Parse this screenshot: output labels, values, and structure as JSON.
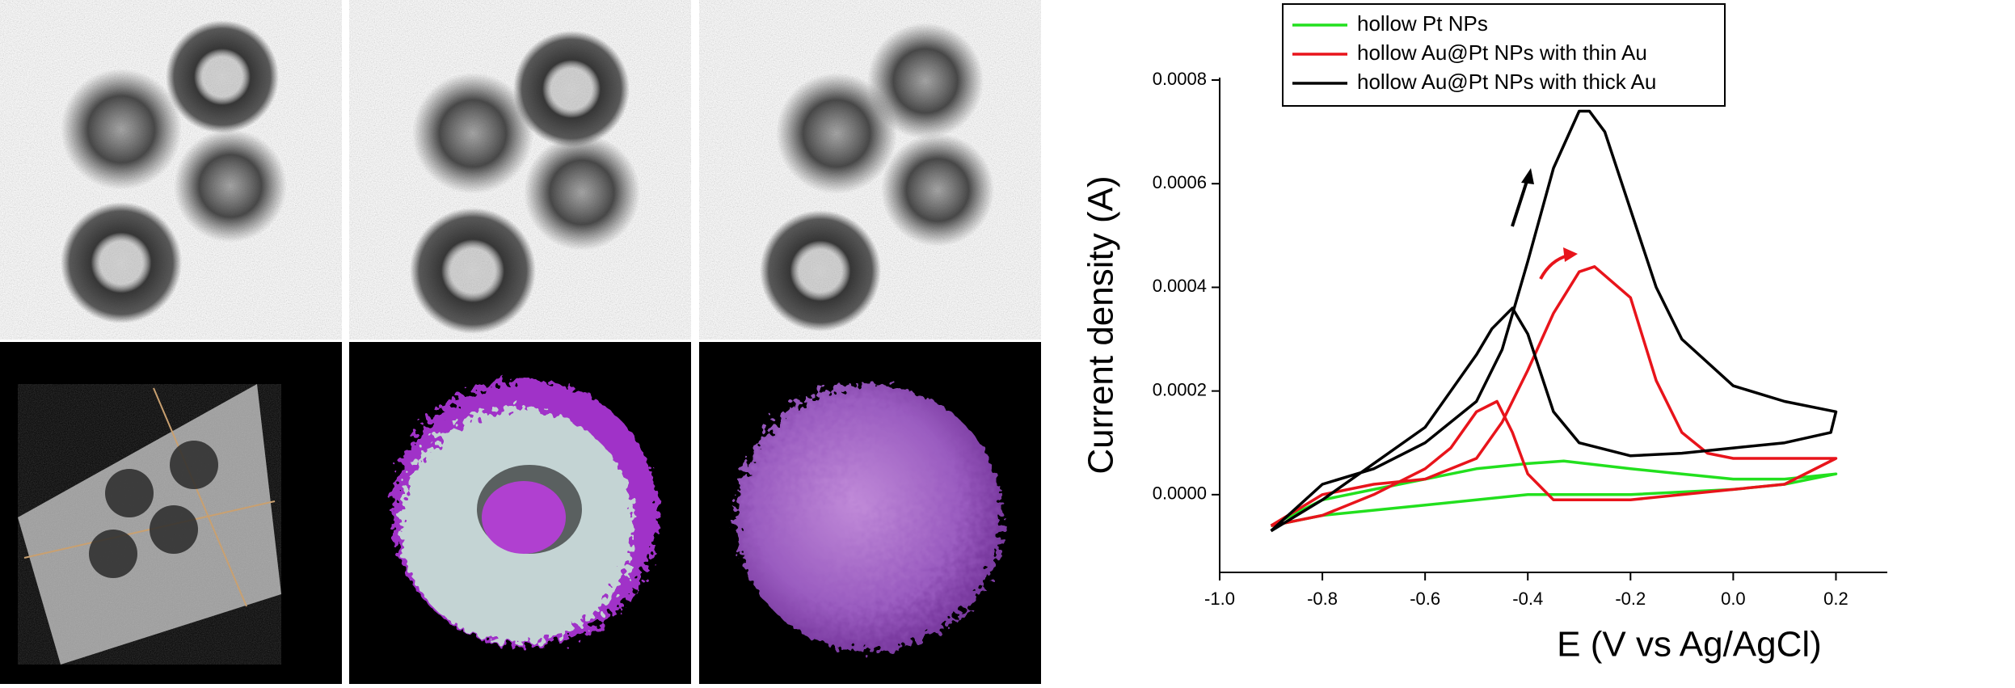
{
  "chart_data": {
    "type": "line",
    "xlabel": "E (V vs Ag/AgCl)",
    "ylabel": "Current density (A)",
    "xlim": [
      -1.0,
      0.3
    ],
    "ylim": [
      -0.00015,
      0.0008
    ],
    "xticks": [
      {
        "value": -1,
        "label": "-1.0"
      },
      -0.8,
      -0.6,
      -0.4,
      -0.2,
      {
        "value": 0,
        "label": "0.0"
      },
      0.2
    ],
    "yticks": [
      {
        "value": 0,
        "label": "0.0000"
      },
      {
        "value": 0.0002,
        "label": "0.0002"
      },
      {
        "value": 0.0004,
        "label": "0.0004"
      },
      {
        "value": 0.0006,
        "label": "0.0006"
      },
      {
        "value": 0.0008,
        "label": "0.0008"
      }
    ],
    "legend": "top",
    "series": [
      {
        "name": "hollow Pt NPs",
        "color": "#22e01e",
        "x": [
          -0.9,
          -0.8,
          -0.7,
          -0.6,
          -0.5,
          -0.4,
          -0.33,
          -0.2,
          -0.1,
          0.0,
          0.1,
          0.2,
          0.1,
          0.0,
          -0.2,
          -0.4,
          -0.6,
          -0.8,
          -0.9
        ],
        "values": [
          -6e-05,
          -1e-05,
          1e-05,
          3e-05,
          5e-05,
          6e-05,
          6.5e-05,
          5e-05,
          4e-05,
          3e-05,
          3e-05,
          4e-05,
          2e-05,
          1e-05,
          0.0,
          0.0,
          -2e-05,
          -4e-05,
          -6e-05
        ]
      },
      {
        "name": "hollow Au@Pt NPs with thin Au",
        "color": "#e8141b",
        "x": [
          -0.9,
          -0.8,
          -0.7,
          -0.6,
          -0.5,
          -0.45,
          -0.4,
          -0.35,
          -0.3,
          -0.27,
          -0.2,
          -0.15,
          -0.1,
          -0.05,
          0.0,
          0.1,
          0.2,
          0.1,
          0.0,
          -0.1,
          -0.2,
          -0.3,
          -0.35,
          -0.4,
          -0.43,
          -0.46,
          -0.5,
          -0.55,
          -0.6,
          -0.7,
          -0.8,
          -0.9
        ],
        "values": [
          -6e-05,
          0.0,
          2e-05,
          3e-05,
          7e-05,
          0.00014,
          0.00024,
          0.00035,
          0.00043,
          0.00044,
          0.00038,
          0.00022,
          0.00012,
          8e-05,
          7e-05,
          7e-05,
          7e-05,
          2e-05,
          1e-05,
          0.0,
          -1e-05,
          -1e-05,
          -1e-05,
          4e-05,
          0.00012,
          0.00018,
          0.00016,
          9e-05,
          5e-05,
          0.0,
          -4e-05,
          -6e-05
        ]
      },
      {
        "name": "hollow Au@Pt NPs with thick Au",
        "color": "#000000",
        "x": [
          -0.9,
          -0.8,
          -0.7,
          -0.6,
          -0.5,
          -0.45,
          -0.4,
          -0.35,
          -0.3,
          -0.28,
          -0.25,
          -0.2,
          -0.15,
          -0.1,
          0.0,
          0.1,
          0.2,
          0.19,
          0.1,
          0.0,
          -0.1,
          -0.2,
          -0.3,
          -0.35,
          -0.4,
          -0.43,
          -0.47,
          -0.5,
          -0.6,
          -0.7,
          -0.8,
          -0.9
        ],
        "values": [
          -7e-05,
          2e-05,
          5e-05,
          0.0001,
          0.00018,
          0.00028,
          0.00045,
          0.00063,
          0.00074,
          0.00074,
          0.0007,
          0.00055,
          0.0004,
          0.0003,
          0.00021,
          0.00018,
          0.00016,
          0.00012,
          0.0001,
          9e-05,
          8e-05,
          7.5e-05,
          0.0001,
          0.00016,
          0.00031,
          0.00036,
          0.00032,
          0.00027,
          0.00013,
          6e-05,
          -1e-05,
          -7e-05
        ]
      }
    ]
  }
}
